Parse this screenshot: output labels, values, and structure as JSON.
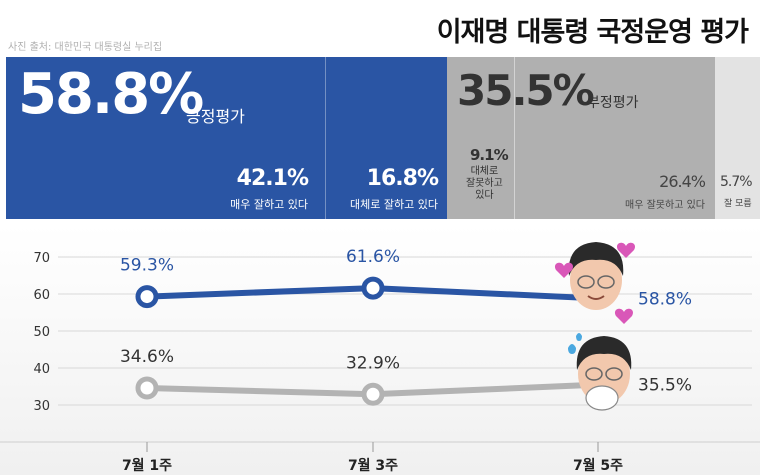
{
  "credit": "사진 출처: 대한민국 대통령실 누리집",
  "title": "이재명 대통령 국정운영 평가",
  "positive": {
    "value": "58.8%",
    "label": "긍정평가",
    "breakdown": [
      {
        "value": "42.1%",
        "label": "매우 잘하고 있다"
      },
      {
        "value": "16.8%",
        "label": "대체로 잘하고 있다"
      }
    ]
  },
  "negative": {
    "value": "35.5%",
    "label": "부정평가",
    "breakdown": [
      {
        "value": "9.1%",
        "label_lines": [
          "대체로",
          "잘못하고",
          "있다"
        ]
      },
      {
        "value": "26.4%",
        "label": "매우 잘못하고 있다"
      }
    ]
  },
  "dont_know": {
    "value": "5.7%",
    "label": "잘 모름"
  },
  "colors": {
    "positive": "#2a55a4",
    "negative": "#b0b0b0",
    "dont_know": "#e3e3e3"
  },
  "icons": [
    "president-photo-hearts",
    "president-photo-sweat"
  ],
  "chart_data": {
    "type": "line",
    "categories": [
      "7월 1주",
      "7월 3주",
      "7월 5주"
    ],
    "series": [
      {
        "values": [
          59.3,
          61.6,
          58.8
        ],
        "labels": [
          "59.3%",
          "61.6%",
          "58.8%"
        ],
        "color": "#2a55a4"
      },
      {
        "values": [
          34.6,
          32.9,
          35.5
        ],
        "labels": [
          "34.6%",
          "32.9%",
          "35.5%"
        ],
        "color": "#b3b3b3"
      }
    ],
    "yticks": [
      70,
      60,
      50,
      40,
      30
    ],
    "ylim": [
      25,
      72
    ],
    "grid": true
  }
}
